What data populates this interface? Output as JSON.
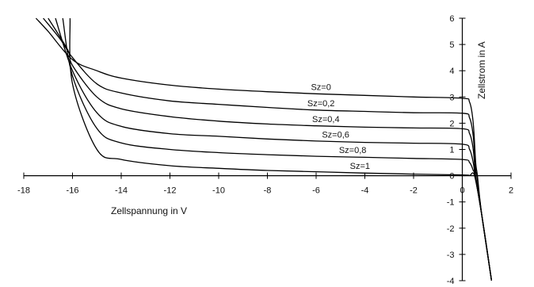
{
  "chart_data": {
    "type": "line",
    "title": "",
    "xlabel": "Zellspannung in V",
    "ylabel": "Zellstrom in A",
    "xlim": [
      -18,
      2
    ],
    "ylim": [
      -4,
      6
    ],
    "x_ticks": [
      -18,
      -16,
      -14,
      -12,
      -10,
      -8,
      -6,
      -4,
      -2,
      0,
      2
    ],
    "y_ticks": [
      -4,
      -3,
      -2,
      -1,
      0,
      1,
      2,
      3,
      4,
      5,
      6
    ],
    "x_tick_labels": [
      "-18",
      "-16",
      "-14",
      "-12",
      "-10",
      "-8",
      "-6",
      "-4",
      "-2",
      "0",
      "2"
    ],
    "y_tick_labels": [
      "-4",
      "-3",
      "-2",
      "-1",
      "0",
      "1",
      "2",
      "3",
      "4",
      "5",
      "6"
    ],
    "grid": false,
    "curve_labels": [
      "Sz=0",
      "Sz=0,2",
      "Sz=0,4",
      "Sz=0,6",
      "Sz=0,8",
      "Sz=1"
    ],
    "series": [
      {
        "name": "Sz=0",
        "points": [
          [
            -17.5,
            6
          ],
          [
            -17,
            5.5
          ],
          [
            -16,
            4.42
          ],
          [
            -15,
            4.0
          ],
          [
            -14,
            3.72
          ],
          [
            -12,
            3.45
          ],
          [
            -10,
            3.3
          ],
          [
            -8,
            3.2
          ],
          [
            -6,
            3.12
          ],
          [
            -4,
            3.06
          ],
          [
            -2,
            3.0
          ],
          [
            0,
            2.95
          ],
          [
            0.3,
            2.8
          ],
          [
            0.45,
            2.0
          ],
          [
            0.55,
            0.5
          ],
          [
            0.62,
            0
          ],
          [
            0.8,
            -1.5
          ],
          [
            1.2,
            -4
          ]
        ]
      },
      {
        "name": "Sz=0,2",
        "points": [
          [
            -17.2,
            6
          ],
          [
            -16.5,
            5.2
          ],
          [
            -16,
            4.5
          ],
          [
            -15,
            3.5
          ],
          [
            -14,
            3.15
          ],
          [
            -12,
            2.85
          ],
          [
            -10,
            2.72
          ],
          [
            -8,
            2.6
          ],
          [
            -6,
            2.5
          ],
          [
            -4,
            2.45
          ],
          [
            -2,
            2.4
          ],
          [
            0,
            2.38
          ],
          [
            0.3,
            2.2
          ],
          [
            0.45,
            1.5
          ],
          [
            0.55,
            0.2
          ],
          [
            0.6,
            0
          ],
          [
            0.8,
            -1.5
          ],
          [
            1.2,
            -4
          ]
        ]
      },
      {
        "name": "Sz=0,4",
        "points": [
          [
            -17,
            6
          ],
          [
            -16.2,
            4.8
          ],
          [
            -16,
            4.2
          ],
          [
            -15,
            3.0
          ],
          [
            -14,
            2.55
          ],
          [
            -12,
            2.25
          ],
          [
            -10,
            2.08
          ],
          [
            -8,
            1.97
          ],
          [
            -6,
            1.9
          ],
          [
            -4,
            1.85
          ],
          [
            -2,
            1.82
          ],
          [
            0,
            1.79
          ],
          [
            0.3,
            1.6
          ],
          [
            0.45,
            1.0
          ],
          [
            0.55,
            0
          ],
          [
            0.8,
            -1.5
          ],
          [
            1.2,
            -4
          ]
        ]
      },
      {
        "name": "Sz=0,6",
        "points": [
          [
            -16.7,
            6
          ],
          [
            -16,
            4.0
          ],
          [
            -15,
            2.4
          ],
          [
            -14,
            1.88
          ],
          [
            -12,
            1.6
          ],
          [
            -10,
            1.5
          ],
          [
            -8,
            1.4
          ],
          [
            -6,
            1.32
          ],
          [
            -4,
            1.27
          ],
          [
            -2,
            1.24
          ],
          [
            0,
            1.2
          ],
          [
            0.3,
            1.0
          ],
          [
            0.45,
            0.5
          ],
          [
            0.53,
            0
          ],
          [
            0.8,
            -1.5
          ],
          [
            1.2,
            -4
          ]
        ]
      },
      {
        "name": "Sz=0,8",
        "points": [
          [
            -16.4,
            6
          ],
          [
            -16,
            3.8
          ],
          [
            -15,
            1.8
          ],
          [
            -14,
            1.25
          ],
          [
            -12,
            1.0
          ],
          [
            -10,
            0.88
          ],
          [
            -8,
            0.8
          ],
          [
            -6,
            0.74
          ],
          [
            -4,
            0.7
          ],
          [
            -2,
            0.66
          ],
          [
            0,
            0.62
          ],
          [
            0.3,
            0.5
          ],
          [
            0.45,
            0.2
          ],
          [
            0.52,
            0
          ],
          [
            0.8,
            -1.5
          ],
          [
            1.2,
            -4
          ]
        ]
      },
      {
        "name": "Sz=1",
        "points": [
          [
            -16.1,
            6
          ],
          [
            -16,
            3.5
          ],
          [
            -15,
            1.0
          ],
          [
            -14,
            0.62
          ],
          [
            -12,
            0.38
          ],
          [
            -10,
            0.28
          ],
          [
            -8,
            0.2
          ],
          [
            -6,
            0.15
          ],
          [
            -4,
            0.1
          ],
          [
            -2,
            0.06
          ],
          [
            0,
            0.03
          ],
          [
            0.3,
            0.01
          ],
          [
            0.5,
            0
          ],
          [
            0.8,
            -1.5
          ],
          [
            1.2,
            -4
          ]
        ]
      }
    ]
  }
}
